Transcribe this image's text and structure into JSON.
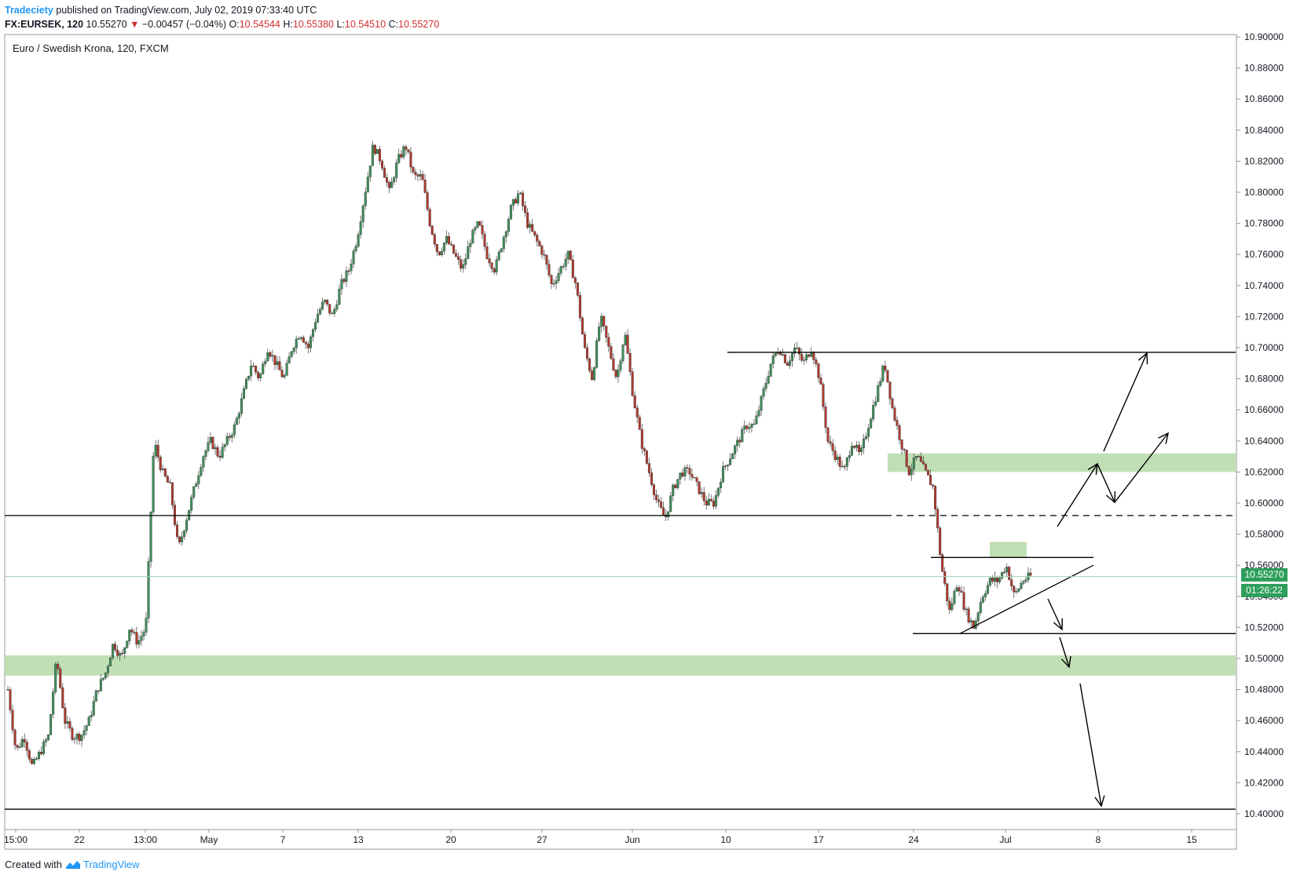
{
  "header": {
    "author": "Tradeciety",
    "published_text": "published on TradingView.com, July 02, 2019 07:33:40 UTC",
    "symbol": "FX:EURSEK, 120",
    "last": "10.55270",
    "change_arrow": "▼",
    "change": "−0.00457 (−0.04%)",
    "o_label": "O:",
    "o_value": "10.54544",
    "h_label": "H:",
    "h_value": "10.55380",
    "l_label": "L:",
    "l_value": "10.54510",
    "c_label": "C:",
    "c_value": "10.55270"
  },
  "footer": {
    "created_with": "Created with",
    "brand": "TradingView"
  },
  "chart_data": {
    "type": "candlestick",
    "title": "Euro / Swedish Krona, 120, FXCM",
    "ylim": [
      10.39,
      10.91
    ],
    "y_ticks": [
      "10.90000",
      "10.88000",
      "10.86000",
      "10.84000",
      "10.82000",
      "10.80000",
      "10.78000",
      "10.76000",
      "10.74000",
      "10.72000",
      "10.70000",
      "10.68000",
      "10.66000",
      "10.64000",
      "10.62000",
      "10.60000",
      "10.58000",
      "10.56000",
      "10.54000",
      "10.52000",
      "10.50000",
      "10.48000",
      "10.46000",
      "10.44000",
      "10.42000",
      "10.40000"
    ],
    "x_ticks": [
      "15:00",
      "22",
      "13:00",
      "May",
      "7",
      "13",
      "20",
      "27",
      "Jun",
      "10",
      "17",
      "24",
      "Jul",
      "8",
      "15"
    ],
    "last_price_label": "10.55270",
    "countdown_label": "01:26:22",
    "colors": {
      "up": "#53b987",
      "down": "#eb4d5c",
      "candle_body_down": "#a63a2f",
      "candle_body_up": "#2e7d4f",
      "zone": "#b6d9a8",
      "line": "#000000",
      "last_price": "#2e9e5b"
    },
    "price_path": [
      10.48,
      10.44,
      10.45,
      10.43,
      10.44,
      10.45,
      10.5,
      10.46,
      10.45,
      10.45,
      10.46,
      10.48,
      10.49,
      10.51,
      10.5,
      10.52,
      10.51,
      10.52,
      10.64,
      10.62,
      10.61,
      10.57,
      10.59,
      10.61,
      10.63,
      10.64,
      10.63,
      10.64,
      10.65,
      10.67,
      10.69,
      10.68,
      10.7,
      10.69,
      10.68,
      10.7,
      10.71,
      10.7,
      10.72,
      10.73,
      10.72,
      10.74,
      10.75,
      10.77,
      10.8,
      10.83,
      10.82,
      10.8,
      10.82,
      10.83,
      10.81,
      10.81,
      10.78,
      10.76,
      10.77,
      10.76,
      10.75,
      10.77,
      10.78,
      10.76,
      10.75,
      10.77,
      10.79,
      10.8,
      10.78,
      10.77,
      10.76,
      10.74,
      10.75,
      10.76,
      10.74,
      10.7,
      10.68,
      10.72,
      10.7,
      10.68,
      10.71,
      10.67,
      10.64,
      10.62,
      10.6,
      10.59,
      10.61,
      10.62,
      10.62,
      10.61,
      10.6,
      10.6,
      10.62,
      10.63,
      10.64,
      10.65,
      10.65,
      10.67,
      10.69,
      10.7,
      10.69,
      10.7,
      10.69,
      10.7,
      10.68,
      10.64,
      10.63,
      10.62,
      10.64,
      10.63,
      10.65,
      10.67,
      10.69,
      10.66,
      10.64,
      10.62,
      10.63,
      10.62,
      10.61,
      10.56,
      10.53,
      10.55,
      10.53,
      10.52,
      10.54,
      10.55,
      10.55,
      10.56,
      10.54,
      10.55,
      10.553
    ],
    "horizontal_levels": [
      10.697,
      10.592,
      10.565,
      10.516,
      10.403
    ],
    "zones": [
      [
        10.62,
        10.632
      ],
      [
        10.489,
        10.502
      ],
      [
        10.565,
        10.575
      ]
    ],
    "scenario_arrows": "bullish breakout targets 10.63 and 10.70; bearish breakdown targets 10.50 and 10.40"
  }
}
